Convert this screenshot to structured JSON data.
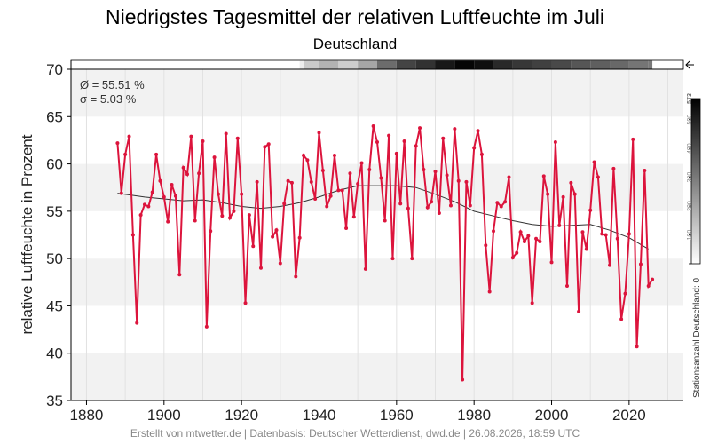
{
  "chart_data": {
    "type": "line",
    "title": "Niedrigstes Tagesmittel der relativen Luftfeuchte im Juli",
    "subtitle": "Deutschland",
    "ylabel": "relative Luftfeuchte in Prozent",
    "xlabel": "",
    "xlim": [
      1876,
      2034
    ],
    "ylim": [
      35,
      70
    ],
    "xticks": [
      1880,
      1900,
      1920,
      1940,
      1960,
      1980,
      2000,
      2020
    ],
    "yticks": [
      35,
      40,
      45,
      50,
      55,
      60,
      65,
      70
    ],
    "grid": true,
    "stats": {
      "mean_label": "Ø = 55.51 %",
      "sd_label": "σ = 5.03 %"
    },
    "series": [
      {
        "kind": "observed",
        "color": "#dc143c",
        "x": [
          1888,
          1889,
          1890,
          1891,
          1892,
          1893,
          1894,
          1895,
          1896,
          1897,
          1898,
          1899,
          1900,
          1901,
          1902,
          1903,
          1904,
          1905,
          1906,
          1907,
          1908,
          1909,
          1910,
          1911,
          1912,
          1913,
          1914,
          1915,
          1916,
          1917,
          1918,
          1919,
          1920,
          1921,
          1922,
          1923,
          1924,
          1925,
          1926,
          1927,
          1928,
          1929,
          1930,
          1931,
          1932,
          1933,
          1934,
          1935,
          1936,
          1937,
          1938,
          1939,
          1940,
          1941,
          1942,
          1943,
          1944,
          1945,
          1946,
          1947,
          1948,
          1949,
          1950,
          1951,
          1952,
          1953,
          1954,
          1955,
          1956,
          1957,
          1958,
          1959,
          1960,
          1961,
          1962,
          1963,
          1964,
          1965,
          1966,
          1967,
          1968,
          1969,
          1970,
          1971,
          1972,
          1973,
          1974,
          1975,
          1976,
          1977,
          1978,
          1979,
          1980,
          1981,
          1982,
          1983,
          1984,
          1985,
          1986,
          1987,
          1988,
          1989,
          1990,
          1991,
          1992,
          1993,
          1994,
          1995,
          1996,
          1997,
          1998,
          1999,
          2000,
          2001,
          2002,
          2003,
          2004,
          2005,
          2006,
          2007,
          2008,
          2009,
          2010,
          2011,
          2012,
          2013,
          2014,
          2015,
          2016,
          2017,
          2018,
          2019,
          2020,
          2021,
          2022,
          2023,
          2024,
          2025,
          2026
        ],
        "values": [
          62.2,
          56.9,
          61.0,
          62.9,
          52.5,
          43.2,
          54.6,
          55.7,
          55.5,
          57.0,
          61.0,
          58.2,
          56.5,
          53.9,
          57.8,
          56.6,
          48.3,
          59.6,
          58.9,
          62.9,
          54.0,
          59.0,
          62.4,
          42.8,
          52.9,
          60.7,
          56.8,
          54.5,
          63.2,
          54.3,
          55.0,
          62.7,
          56.8,
          45.3,
          54.6,
          51.3,
          58.1,
          49.0,
          61.8,
          62.1,
          52.3,
          53.0,
          49.5,
          55.8,
          58.2,
          58.0,
          48.1,
          52.2,
          60.9,
          60.4,
          58.1,
          56.3,
          63.3,
          59.3,
          55.5,
          56.6,
          60.9,
          57.2,
          57.2,
          53.2,
          59.0,
          54.4,
          57.9,
          60.1,
          48.9,
          59.4,
          64.0,
          62.3,
          58.5,
          54.0,
          63.0,
          50.0,
          61.1,
          55.8,
          62.4,
          55.3,
          50.0,
          61.9,
          63.8,
          59.4,
          55.4,
          56.0,
          59.2,
          54.8,
          62.7,
          58.8,
          55.6,
          63.7,
          58.2,
          37.2,
          58.1,
          55.6,
          61.7,
          63.5,
          61.0,
          51.4,
          46.5,
          52.9,
          55.9,
          55.5,
          56.0,
          58.6,
          50.1,
          50.6,
          52.8,
          51.8,
          52.4,
          45.3,
          52.1,
          51.8,
          58.7,
          56.8,
          49.6,
          62.3,
          53.5,
          56.5,
          47.1,
          58.0,
          56.8,
          44.4,
          52.8,
          51.0,
          55.1,
          60.2,
          58.6,
          52.6,
          52.5,
          49.3,
          59.5,
          52.1,
          43.6,
          46.3,
          52.6,
          62.6,
          40.7,
          49.4,
          59.3,
          47.1,
          47.8
        ]
      },
      {
        "kind": "trend",
        "color": "#333333",
        "x": [
          1888,
          1895,
          1900,
          1905,
          1910,
          1915,
          1920,
          1925,
          1930,
          1935,
          1940,
          1945,
          1950,
          1955,
          1960,
          1965,
          1970,
          1975,
          1980,
          1985,
          1990,
          1995,
          2000,
          2005,
          2010,
          2015,
          2020,
          2025
        ],
        "values": [
          56.9,
          56.5,
          56.3,
          56.1,
          56.2,
          55.9,
          55.5,
          55.3,
          55.5,
          55.9,
          56.5,
          57.2,
          57.7,
          57.7,
          57.7,
          57.5,
          56.8,
          56.0,
          55.0,
          54.5,
          54.0,
          53.6,
          53.4,
          53.5,
          53.6,
          53.0,
          52.2,
          51.0
        ]
      }
    ],
    "station_count": {
      "label": "Stationsanzahl Deutschland: 0",
      "max": 573,
      "ticks": [
        0,
        100,
        200,
        300,
        400,
        500,
        573
      ],
      "colorscale": "white-to-black",
      "x": [
        1876,
        1880,
        1885,
        1890,
        1895,
        1900,
        1905,
        1910,
        1915,
        1920,
        1925,
        1930,
        1935,
        1936,
        1940,
        1945,
        1950,
        1955,
        1960,
        1965,
        1970,
        1975,
        1980,
        1985,
        1990,
        1995,
        2000,
        2005,
        2010,
        2015,
        2020,
        2025,
        2026
      ],
      "counts": [
        0,
        0,
        0,
        0,
        0,
        0,
        0,
        0,
        0,
        0,
        0,
        0,
        40,
        120,
        170,
        110,
        200,
        330,
        420,
        460,
        520,
        560,
        540,
        480,
        450,
        430,
        410,
        380,
        360,
        340,
        310,
        300,
        0
      ]
    }
  },
  "footer": "Erstellt von mtwetter.de | Datenbasis: Deutscher Wetterdienst, dwd.de | 26.08.2026, 18:59 UTC"
}
